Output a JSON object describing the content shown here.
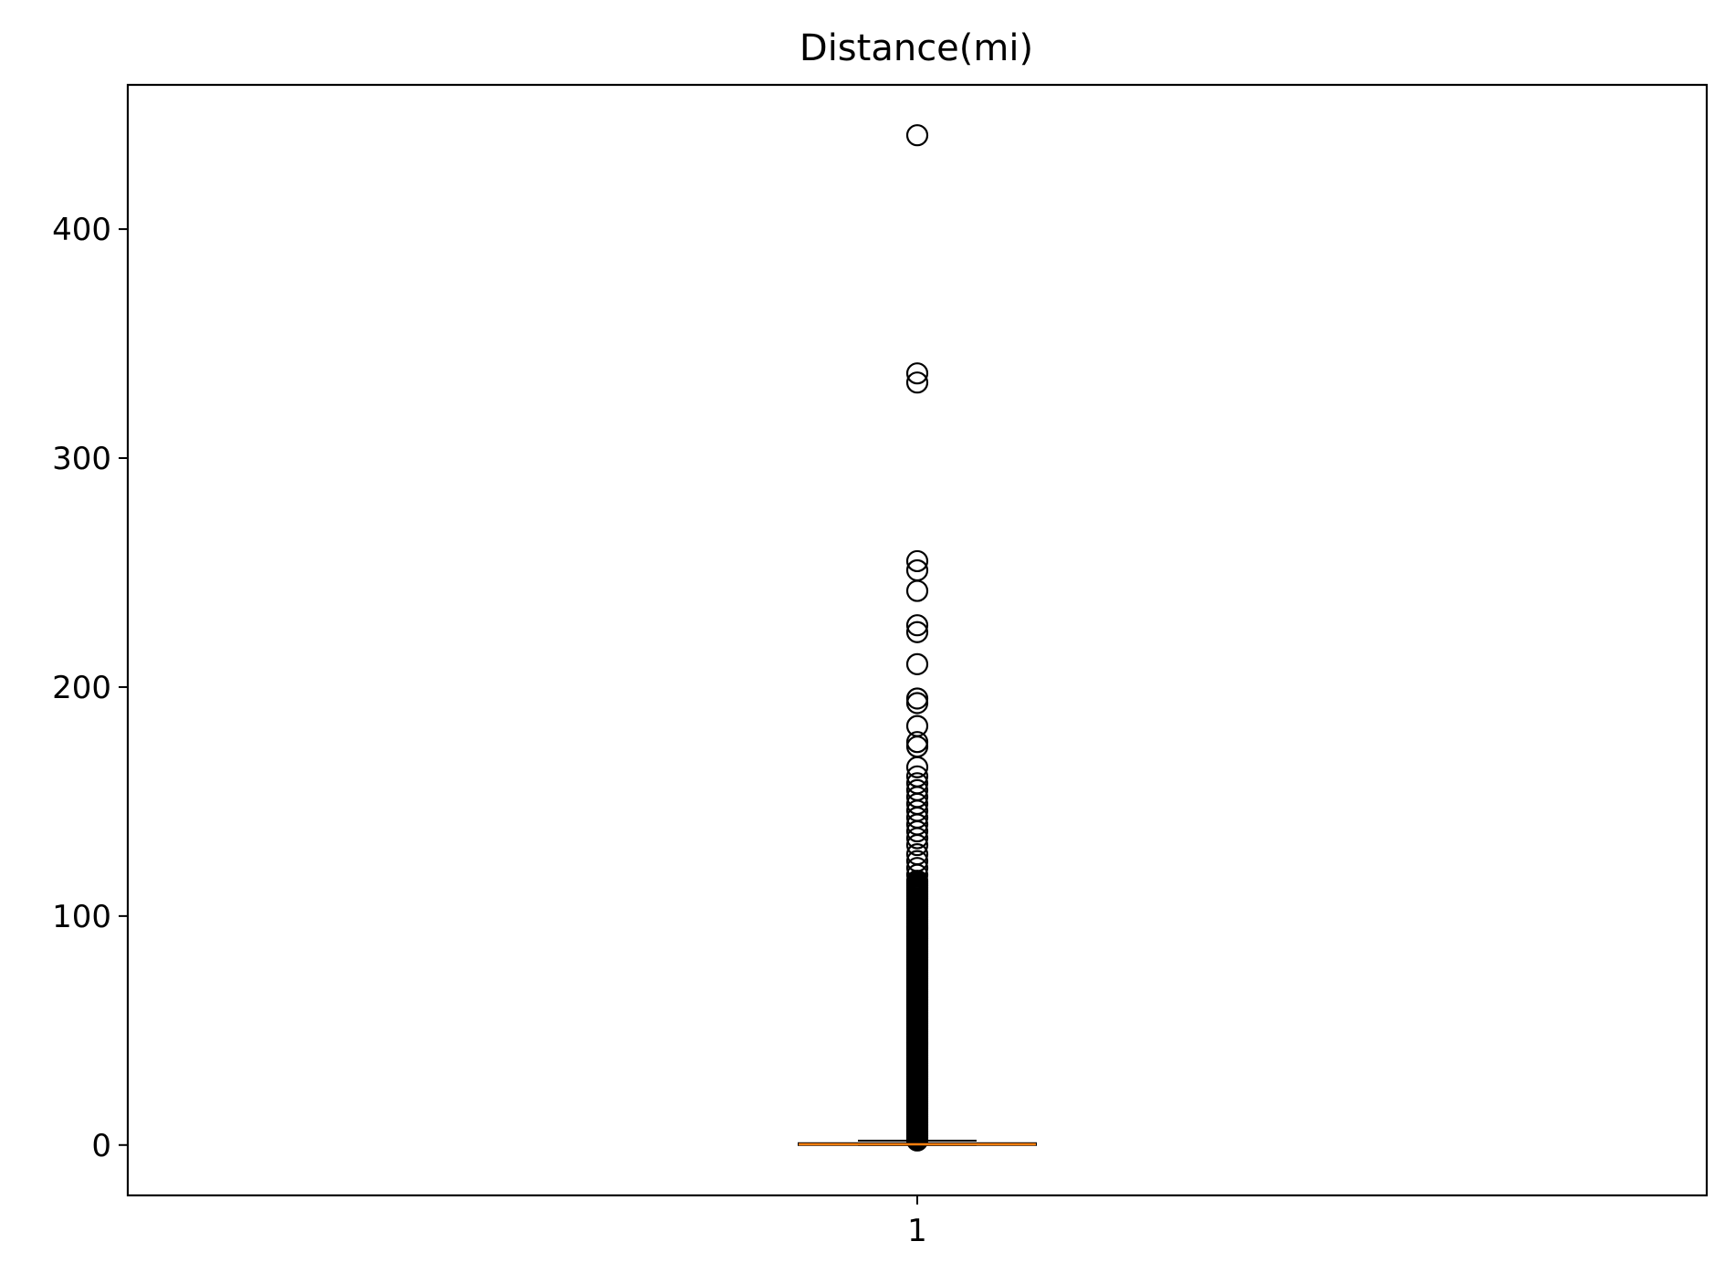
{
  "chart_data": {
    "type": "box",
    "title": "Distance(mi)",
    "xlabel": "",
    "ylabel": "",
    "categories": [
      "1"
    ],
    "ylim": [
      -22,
      463
    ],
    "yticks": [
      0,
      100,
      200,
      300,
      400
    ],
    "ytick_labels": [
      "0",
      "100",
      "200",
      "300",
      "400"
    ],
    "grid": false,
    "box": {
      "q1": 0.0,
      "median": 0.3,
      "q3": 0.8,
      "whisker_low": 0.0,
      "whisker_high": 1.9
    },
    "outliers_sparse": [
      441,
      337,
      333,
      255,
      251,
      242,
      227,
      224,
      210,
      195,
      193,
      183,
      176,
      174,
      165,
      161,
      158,
      155,
      152,
      149,
      146,
      143,
      140,
      137,
      134,
      131,
      127,
      124,
      121,
      118
    ],
    "outliers_dense_range": [
      2,
      116
    ],
    "colors": {
      "box_stroke": "#000000",
      "median": "#ff7f0e",
      "outlier_stroke": "#000000"
    }
  }
}
